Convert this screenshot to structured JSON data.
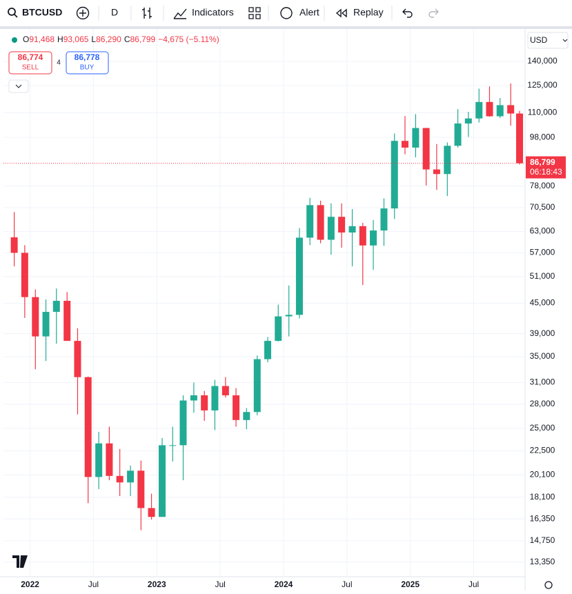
{
  "toolbar": {
    "symbol": "BTCUSD",
    "interval": "D",
    "indicators": "Indicators",
    "alert": "Alert",
    "replay": "Replay"
  },
  "chart_data": {
    "type": "candlestick",
    "scale": "log",
    "grid": true,
    "up_color": "#22ab94",
    "down_color": "#f23645",
    "ohlc_legend": [
      "O",
      "91,468",
      "H",
      "93,065",
      "L",
      "86,290",
      "C",
      "86,799",
      "−4,675 (−5.11%)"
    ],
    "sell": {
      "price": "86,774",
      "label": "SELL"
    },
    "spread": "4",
    "buy": {
      "price": "86,778",
      "label": "BUY"
    },
    "currency": "USD",
    "last_price": {
      "value": 86799,
      "label": "86,799"
    },
    "countdown": "06:18:43",
    "x": [
      2021.875,
      2021.958,
      2022.042,
      2022.125,
      2022.208,
      2022.292,
      2022.375,
      2022.458,
      2022.542,
      2022.625,
      2022.708,
      2022.792,
      2022.875,
      2022.958,
      2023.042,
      2023.125,
      2023.208,
      2023.292,
      2023.375,
      2023.458,
      2023.542,
      2023.625,
      2023.708,
      2023.792,
      2023.875,
      2023.958,
      2024.042,
      2024.125,
      2024.208,
      2024.292,
      2024.375,
      2024.458,
      2024.542,
      2024.625,
      2024.708,
      2024.792,
      2024.875,
      2024.958,
      2025.042,
      2025.125,
      2025.208,
      2025.292,
      2025.375,
      2025.458,
      2025.542,
      2025.625,
      2025.708,
      2025.792,
      2025.862
    ],
    "open": [
      61300,
      57000,
      46300,
      38500,
      43200,
      45500,
      37700,
      31800,
      19900,
      23300,
      20000,
      19400,
      20500,
      17200,
      16500,
      23100,
      23100,
      28500,
      29200,
      27200,
      30500,
      29200,
      26000,
      27000,
      34600,
      37700,
      42300,
      42600,
      61200,
      71300,
      60600,
      67500,
      62700,
      64600,
      59000,
      63300,
      70200,
      96400,
      93400,
      102400,
      84300,
      82500,
      94200,
      104600,
      107100,
      115700,
      108200,
      114000,
      109600
    ],
    "high": [
      69000,
      59100,
      48000,
      45800,
      48200,
      47400,
      40000,
      31900,
      24600,
      25200,
      22700,
      21000,
      21500,
      18400,
      23900,
      25200,
      29200,
      31000,
      29800,
      31400,
      31800,
      30200,
      27500,
      35200,
      38400,
      44700,
      48900,
      64000,
      73800,
      72800,
      71900,
      71900,
      70000,
      65600,
      66500,
      73600,
      99800,
      108300,
      109300,
      102500,
      95000,
      95700,
      111900,
      110500,
      123200,
      124500,
      117900,
      126200,
      111000
    ],
    "low": [
      53500,
      42000,
      33000,
      34300,
      37200,
      37700,
      26700,
      17600,
      18800,
      19600,
      18200,
      18200,
      15500,
      16300,
      16500,
      21400,
      19600,
      26900,
      25900,
      24800,
      28900,
      25200,
      24900,
      26600,
      34100,
      37600,
      38500,
      41900,
      59100,
      59600,
      56500,
      58400,
      53500,
      49000,
      52600,
      58900,
      66800,
      90500,
      89200,
      78200,
      76600,
      74400,
      93400,
      98200,
      105100,
      108000,
      107300,
      103500,
      86290
    ],
    "close": [
      57000,
      46300,
      38500,
      43200,
      45500,
      37700,
      31800,
      19900,
      23300,
      20000,
      19400,
      20500,
      17200,
      16500,
      23100,
      23100,
      28500,
      29200,
      27200,
      30500,
      29200,
      26000,
      27000,
      34600,
      37700,
      42300,
      42600,
      61200,
      71300,
      60600,
      67500,
      62700,
      64600,
      59000,
      63300,
      70200,
      96400,
      93400,
      102400,
      84300,
      82500,
      94200,
      104600,
      107100,
      115700,
      108200,
      114000,
      109600,
      86799
    ],
    "xlim": [
      2021.79,
      2025.9
    ],
    "xticks": [
      {
        "value": 2022,
        "label": "2022"
      },
      {
        "value": 2022.5,
        "label": "Jul"
      },
      {
        "value": 2023,
        "label": "2023"
      },
      {
        "value": 2023.5,
        "label": "Jul"
      },
      {
        "value": 2024,
        "label": "2024"
      },
      {
        "value": 2024.5,
        "label": "Jul"
      },
      {
        "value": 2025,
        "label": "2025"
      },
      {
        "value": 2025.5,
        "label": "Jul"
      }
    ],
    "ylim": [
      12500,
      163000
    ],
    "yticks": [
      {
        "value": 140000,
        "label": "140,000"
      },
      {
        "value": 125000,
        "label": "125,000"
      },
      {
        "value": 110000,
        "label": "110,000"
      },
      {
        "value": 98000,
        "label": "98,000"
      },
      {
        "value": 78000,
        "label": "78,000"
      },
      {
        "value": 70500,
        "label": "70,500"
      },
      {
        "value": 63000,
        "label": "63,000"
      },
      {
        "value": 57000,
        "label": "57,000"
      },
      {
        "value": 51000,
        "label": "51,000"
      },
      {
        "value": 45000,
        "label": "45,000"
      },
      {
        "value": 39000,
        "label": "39,000"
      },
      {
        "value": 35000,
        "label": "35,000"
      },
      {
        "value": 31000,
        "label": "31,000"
      },
      {
        "value": 28000,
        "label": "28,000"
      },
      {
        "value": 25000,
        "label": "25,000"
      },
      {
        "value": 22500,
        "label": "22,500"
      },
      {
        "value": 20100,
        "label": "20,100"
      },
      {
        "value": 18100,
        "label": "18,100"
      },
      {
        "value": 16350,
        "label": "16,350"
      },
      {
        "value": 14750,
        "label": "14,750"
      },
      {
        "value": 13350,
        "label": "13,350"
      }
    ]
  }
}
